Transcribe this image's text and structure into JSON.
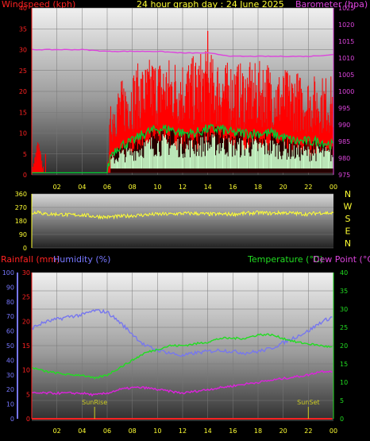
{
  "header": {
    "left_label": "Windspeed (kph)",
    "title": "24 hour graph day : 24 June 2025",
    "right_label": "Barometer (hpa)"
  },
  "colors": {
    "wind_gust": "#ff0000",
    "wind_avg": "#00cc33",
    "wind_low": "#ccffcc",
    "barometer": "#dd44dd",
    "direction": "#ffff33",
    "rain": "#ff2222",
    "humidity": "#7777ee",
    "temperature": "#22dd22",
    "dewpoint": "#dd22dd",
    "axis_text_left_top": "#ff2222",
    "axis_text_right_top": "#dd44dd",
    "axis_text_left_bottom": "#ff2222",
    "axis_text_humidity": "#7777ff",
    "axis_text_temp": "#22dd22",
    "sun": "#cccc22"
  },
  "chart_data": [
    {
      "type": "line",
      "name": "wind_and_pressure",
      "x_ticks": [
        "02",
        "04",
        "06",
        "08",
        "10",
        "12",
        "14",
        "16",
        "18",
        "20",
        "22",
        "00"
      ],
      "left_axis": {
        "label": "Windspeed (kph)",
        "ylim": [
          0,
          40
        ],
        "ticks": [
          "0",
          "5",
          "10",
          "15",
          "20",
          "25",
          "30",
          "35",
          "40"
        ]
      },
      "right_axis": {
        "label": "Barometer (hpa)",
        "ylim": [
          975,
          1025
        ],
        "ticks": [
          "975",
          "980",
          "985",
          "990",
          "995",
          "1000",
          "1005",
          "1010",
          "1015",
          "1020",
          "1025"
        ]
      },
      "series": [
        {
          "name": "Windspeed (kph)",
          "hours": [
            0,
            0.5,
            1,
            1.5,
            2,
            3,
            4,
            5,
            6,
            6.3,
            6.6,
            7,
            7.5,
            8,
            8.5,
            9,
            9.5,
            10,
            10.5,
            11,
            11.5,
            12,
            12.5,
            13,
            13.5,
            14,
            14.5,
            15,
            15.5,
            16,
            16.5,
            17,
            17.5,
            18,
            18.5,
            19,
            19.5,
            20,
            20.5,
            21,
            21.5,
            22,
            22.5,
            23,
            23.5,
            24
          ],
          "values": [
            0.5,
            6,
            0.5,
            0.5,
            0.5,
            0.5,
            0.5,
            0.5,
            0.5,
            12,
            14,
            15,
            16,
            17,
            18,
            18,
            19,
            19,
            19,
            19,
            19,
            19,
            19,
            19,
            20,
            20,
            19,
            19,
            18,
            19,
            18,
            18,
            18,
            18,
            19,
            18,
            17,
            17,
            17,
            17,
            16,
            16,
            16,
            16,
            16,
            16
          ]
        },
        {
          "name": "Wind average",
          "hours": [
            0,
            1,
            2,
            3,
            4,
            5,
            6,
            6.3,
            7,
            8,
            9,
            10,
            11,
            12,
            13,
            14,
            15,
            16,
            17,
            18,
            19,
            20,
            21,
            22,
            23,
            24
          ],
          "values": [
            0.5,
            0.5,
            0.5,
            0.5,
            0.5,
            0.5,
            0.5,
            5,
            7,
            8,
            10,
            11,
            11,
            10,
            10,
            11,
            11,
            10,
            10,
            10,
            10,
            9,
            8,
            8,
            8,
            7
          ]
        },
        {
          "name": "Barometer (hpa)",
          "hours": [
            0,
            2,
            4,
            6,
            8,
            10,
            12,
            14,
            15,
            16,
            18,
            20,
            22,
            24
          ],
          "values": [
            1012.5,
            1012.5,
            1012.5,
            1012,
            1012,
            1012,
            1011.5,
            1011.5,
            1011,
            1010.5,
            1010.5,
            1010.5,
            1010.5,
            1011
          ]
        }
      ]
    },
    {
      "type": "line",
      "name": "wind_direction",
      "left_axis": {
        "ylim": [
          0,
          360
        ],
        "ticks": [
          "0",
          "90",
          "180",
          "270",
          "360"
        ]
      },
      "right_labels": [
        "N",
        "W",
        "S",
        "E",
        "N"
      ],
      "series": [
        {
          "name": "Wind direction",
          "hours": [
            0,
            0.5,
            1,
            2,
            3,
            4,
            5,
            6,
            7,
            8,
            9,
            10,
            11,
            12,
            13,
            14,
            15,
            16,
            17,
            18,
            19,
            20,
            21,
            22,
            23,
            24
          ],
          "values": [
            230,
            245,
            225,
            225,
            220,
            220,
            210,
            205,
            210,
            215,
            220,
            225,
            225,
            230,
            230,
            225,
            225,
            225,
            230,
            235,
            230,
            235,
            230,
            225,
            235,
            230
          ]
        }
      ]
    },
    {
      "type": "line",
      "name": "temp_humidity_rain",
      "x_ticks": [
        "02",
        "04",
        "06",
        "08",
        "10",
        "12",
        "14",
        "16",
        "18",
        "20",
        "22",
        "00"
      ],
      "header_labels": {
        "rain": "Rainfall (mm)",
        "humidity": "Humidity (%)",
        "temperature": "Temperature (°C)",
        "dewpoint": "Dew Point (°C)"
      },
      "humidity_axis": {
        "ylim": [
          0,
          100
        ],
        "ticks": [
          "0",
          "10",
          "20",
          "30",
          "40",
          "50",
          "60",
          "70",
          "80",
          "90",
          "100"
        ]
      },
      "rain_axis": {
        "ylim": [
          0,
          30
        ],
        "ticks": [
          "0",
          "5",
          "10",
          "15",
          "20",
          "25",
          "30"
        ]
      },
      "temp_axis": {
        "ylim": [
          0,
          40
        ],
        "ticks": [
          "0",
          "5",
          "10",
          "15",
          "20",
          "25",
          "30",
          "35",
          "40"
        ]
      },
      "annotations": [
        {
          "text": "SunRise",
          "hour": 5
        },
        {
          "text": "SunSet",
          "hour": 22
        }
      ],
      "series": [
        {
          "name": "Humidity (%)",
          "hours": [
            0,
            1,
            2,
            3,
            4,
            5,
            6,
            7,
            8,
            9,
            10,
            11,
            12,
            13,
            14,
            15,
            16,
            17,
            18,
            19,
            20,
            21,
            22,
            23,
            24
          ],
          "values": [
            62,
            66,
            68,
            70,
            71,
            74,
            73,
            66,
            58,
            50,
            47,
            45,
            43,
            45,
            46,
            47,
            46,
            45,
            46,
            48,
            52,
            56,
            60,
            66,
            70
          ]
        },
        {
          "name": "Temperature (°C)",
          "hours": [
            0,
            1,
            2,
            3,
            4,
            5,
            6,
            7,
            8,
            9,
            10,
            11,
            12,
            13,
            14,
            15,
            16,
            17,
            18,
            19,
            20,
            21,
            22,
            23,
            24
          ],
          "values": [
            14,
            13,
            12.5,
            12,
            12,
            11,
            12,
            14,
            16,
            18,
            19,
            20,
            20,
            20.5,
            21,
            22,
            22,
            22,
            23,
            23,
            22,
            21,
            20.5,
            20,
            19.5
          ]
        },
        {
          "name": "Dew Point (°C)",
          "hours": [
            0,
            1,
            2,
            3,
            4,
            5,
            6,
            7,
            8,
            9,
            10,
            11,
            12,
            13,
            14,
            15,
            16,
            17,
            18,
            19,
            20,
            21,
            22,
            23,
            24
          ],
          "values": [
            7,
            7,
            7,
            7,
            7,
            6.5,
            7,
            8,
            8.5,
            8.5,
            8,
            7.5,
            7,
            7.5,
            8,
            8.5,
            9,
            9.5,
            10,
            10.5,
            11,
            11.5,
            12,
            13,
            13
          ]
        },
        {
          "name": "Rainfall (mm)",
          "hours": [
            0,
            24
          ],
          "values": [
            0,
            0
          ]
        }
      ]
    }
  ]
}
